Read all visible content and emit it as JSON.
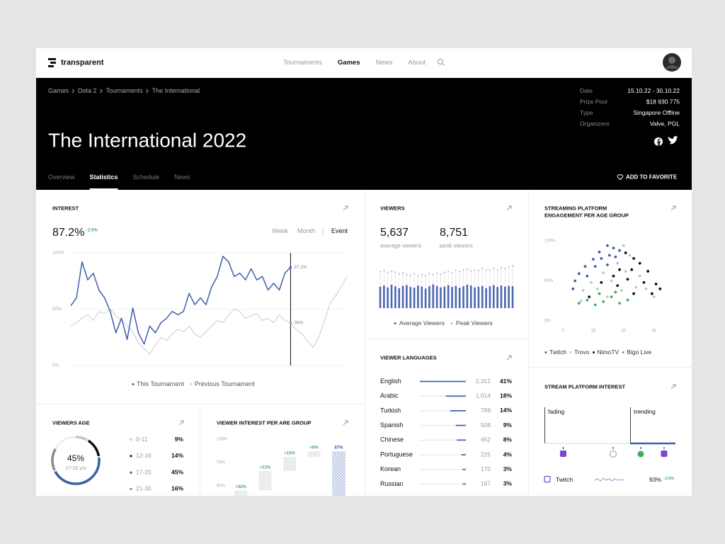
{
  "nav": {
    "logo": "transparent",
    "links": [
      {
        "label": "Tournaments"
      },
      {
        "label": "Games",
        "active": true
      },
      {
        "label": "News"
      },
      {
        "label": "About"
      }
    ]
  },
  "hero": {
    "breadcrumbs": [
      "Games",
      "Dota 2",
      "Tournaments",
      "The International"
    ],
    "title": "The International 2022",
    "info": [
      {
        "label": "Date",
        "value": "15.10.22 - 30.10.22"
      },
      {
        "label": "Prize Pool",
        "value": "$18 930 775"
      },
      {
        "label": "Type",
        "value": "Singapore Offline"
      },
      {
        "label": "Organizers",
        "value": "Valve, PGL"
      }
    ],
    "tabs": [
      {
        "label": "Overview"
      },
      {
        "label": "Statistics",
        "active": true
      },
      {
        "label": "Schedule"
      },
      {
        "label": "News"
      }
    ],
    "favorite": "ADD TO FAVORITE"
  },
  "interest": {
    "title": "INTEREST",
    "value": "87.2%",
    "change": "↑2.5%",
    "periods": [
      {
        "label": "Week"
      },
      {
        "label": "Month"
      },
      {
        "label": "Event",
        "active": true
      }
    ],
    "chart": {
      "type": "line",
      "ylim": [
        0,
        100
      ],
      "grid": true,
      "yticks": [
        {
          "value": 0,
          "label": "0%"
        },
        {
          "value": 50,
          "label": "50%"
        },
        {
          "value": 100,
          "label": "100%"
        }
      ],
      "series": [
        {
          "name": "This Tournament",
          "color": "#3d5fa8",
          "values": [
            53,
            60,
            92,
            76,
            82,
            67,
            60,
            48,
            29,
            42,
            23,
            51,
            29,
            19,
            35,
            29,
            38,
            42,
            48,
            45,
            48,
            64,
            54,
            60,
            54,
            70,
            79,
            97,
            92,
            79,
            82,
            76,
            86,
            76,
            79,
            67,
            73,
            67,
            82,
            87.2,
            null,
            null,
            null,
            null,
            null,
            null,
            null,
            null,
            null,
            null
          ]
        },
        {
          "name": "Previous Tournament",
          "color": "#cfcfcf",
          "values": [
            35,
            38,
            42,
            45,
            40,
            48,
            46,
            50,
            44,
            40,
            35,
            30,
            20,
            15,
            10,
            18,
            25,
            22,
            28,
            32,
            30,
            35,
            28,
            25,
            30,
            35,
            40,
            38,
            45,
            50,
            48,
            42,
            44,
            46,
            40,
            42,
            38,
            45,
            40,
            38,
            32,
            28,
            22,
            16,
            25,
            40,
            55,
            62,
            70,
            79
          ]
        }
      ],
      "annotations": [
        {
          "label": "87.2%",
          "value": 87.2
        },
        {
          "label": "38%",
          "value": 38
        }
      ]
    }
  },
  "viewers": {
    "title": "VIEWERS",
    "stats": [
      {
        "value": "5,637",
        "label": "average viewers"
      },
      {
        "value": "8,751",
        "label": "peak viewers"
      }
    ],
    "chart": {
      "type": "bar",
      "ylim": [
        0,
        12000
      ],
      "series": [
        {
          "name": "Average Viewers",
          "color": "#4a67b0",
          "values": [
            5600,
            5900,
            5400,
            6100,
            5700,
            5200,
            5800,
            6000,
            5500,
            5300,
            5900,
            5600,
            5100,
            5700,
            6200,
            5800,
            5400,
            5600,
            6000,
            5500,
            5800,
            5300,
            5700,
            6100,
            5900,
            5400,
            5600,
            5800,
            5200,
            5700,
            6000,
            5500,
            5900,
            5600,
            5800,
            5700
          ]
        },
        {
          "name": "Peak Viewers",
          "color": "#bdbdbd",
          "values": [
            9500,
            9800,
            9300,
            9600,
            9400,
            9000,
            9200,
            8800,
            8600,
            8900,
            8400,
            8700,
            8500,
            9000,
            8800,
            9100,
            8900,
            9300,
            9500,
            9200,
            9800,
            9600,
            9900,
            10200,
            9700,
            10000,
            9800,
            10300,
            9900,
            10100,
            10400,
            10000,
            10600,
            10300,
            10800,
            11000
          ]
        }
      ]
    }
  },
  "languages": {
    "title": "VIEWER LANGUAGES",
    "color": "#4a67b0",
    "rows": [
      {
        "name": "English",
        "value": 2312,
        "value_label": "2,312",
        "share": 41,
        "share_label": "41%"
      },
      {
        "name": "Arabic",
        "value": 1014,
        "value_label": "1,014",
        "share": 18,
        "share_label": "18%"
      },
      {
        "name": "Turkish",
        "value": 789,
        "share": 14,
        "share_label": "14%"
      },
      {
        "name": "Spanish",
        "value": 508,
        "share": 9,
        "share_label": "9%"
      },
      {
        "name": "Chinese",
        "value": 452,
        "share": 8,
        "share_label": "8%"
      },
      {
        "name": "Portuguese",
        "value": 225,
        "share": 4,
        "share_label": "4%"
      },
      {
        "name": "Korean",
        "value": 170,
        "share": 3,
        "share_label": "3%"
      },
      {
        "name": "Russian",
        "value": 167,
        "share": 3,
        "share_label": "3%"
      }
    ]
  },
  "streaming": {
    "title": [
      "STREAMING PLATFORM",
      "ENGAGEMENT PER AGE GROUP"
    ],
    "chart": {
      "type": "scatter",
      "xlim": [
        0,
        50
      ],
      "ylim": [
        0,
        100
      ],
      "xticks": [
        0,
        15,
        30,
        45
      ],
      "yticks": [
        {
          "value": 0,
          "label": "0%"
        },
        {
          "value": 50,
          "label": "50%"
        },
        {
          "value": 100,
          "label": "100%"
        }
      ],
      "series": [
        {
          "name": "Twitch",
          "color": "#3d5fa8",
          "x": [
            22,
            25,
            28,
            18,
            15,
            11,
            8,
            6,
            5,
            19,
            23,
            16,
            12,
            26,
            22
          ],
          "y": [
            94,
            91,
            88,
            86,
            77,
            68,
            59,
            50,
            40,
            78,
            82,
            68,
            56,
            80,
            70
          ]
        },
        {
          "name": "Trovo",
          "color": "#c4c4c4",
          "x": [
            30,
            33,
            27,
            20,
            14,
            10,
            17,
            24,
            31,
            38,
            41,
            45,
            36,
            29,
            22,
            9
          ],
          "y": [
            94,
            82,
            72,
            60,
            48,
            38,
            40,
            50,
            62,
            56,
            40,
            30,
            42,
            38,
            30,
            25
          ]
        },
        {
          "name": "NimoTV",
          "color": "#111111",
          "x": [
            31,
            35,
            38,
            28,
            34,
            42,
            25,
            32,
            40,
            46,
            48,
            27,
            35,
            44,
            19,
            13
          ],
          "y": [
            85,
            78,
            72,
            64,
            64,
            62,
            56,
            52,
            48,
            46,
            40,
            44,
            34,
            34,
            48,
            30
          ]
        },
        {
          "name": "Bigo Live",
          "color": "#3fae5a",
          "x": [
            8,
            12,
            16,
            20,
            24,
            28,
            32,
            18,
            26
          ],
          "y": [
            22,
            26,
            20,
            24,
            30,
            22,
            26,
            34,
            36
          ]
        }
      ]
    }
  },
  "platform_interest": {
    "title": "STREAM PLATFORM INTEREST",
    "zones": [
      "fading",
      "trending"
    ],
    "rows": [
      {
        "name": "Twitch",
        "value": "93%",
        "change": "↑2.5%"
      }
    ]
  },
  "age": {
    "title": "VIEWERS AGE",
    "center_value": "45%",
    "center_label": "17-20 y/o",
    "groups": [
      {
        "name": "0-11",
        "share": 9,
        "share_label": "9%",
        "color": "#c4c4c4"
      },
      {
        "name": "12-16",
        "share": 14,
        "share_label": "14%",
        "color": "#111111"
      },
      {
        "name": "17-20",
        "share": 45,
        "share_label": "45%",
        "color": "#3d5fa8"
      },
      {
        "name": "21-30",
        "share": 16,
        "share_label": "16%",
        "color": "#8a8a8a"
      }
    ]
  },
  "age_interest": {
    "title": "VIEWER INTEREST PER ARE GROUP",
    "chart": {
      "type": "waterfall",
      "ylim": [
        0,
        100
      ],
      "yticks": [
        {
          "value": 50,
          "label": "50%"
        },
        {
          "value": 75,
          "label": "75%"
        },
        {
          "value": 100,
          "label": "100%"
        }
      ],
      "values": [
        32,
        21,
        15,
        6
      ],
      "value_labels": [
        "+32%",
        "+21%",
        "+15%",
        "+6%"
      ],
      "total": 87,
      "total_label": "87%"
    }
  }
}
